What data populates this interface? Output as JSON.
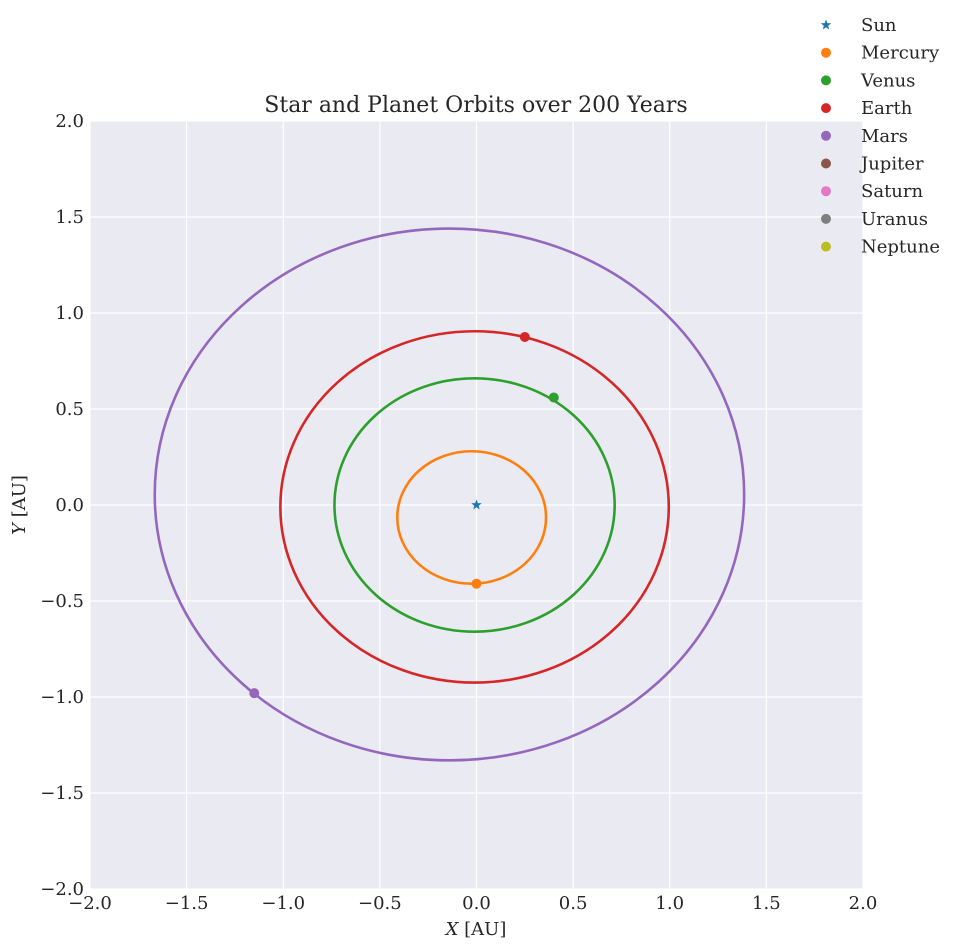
{
  "chart_data": {
    "type": "line",
    "title": "Star and Planet Orbits over 200 Years",
    "xlabel_var": "X",
    "xlabel_unit": " [AU]",
    "ylabel_var": "Y",
    "ylabel_unit": " [AU]",
    "xlim": [
      -2.0,
      2.0
    ],
    "ylim": [
      -2.0,
      2.0
    ],
    "xticks": [
      -2.0,
      -1.5,
      -1.0,
      -0.5,
      0.0,
      0.5,
      1.0,
      1.5,
      2.0
    ],
    "yticks": [
      -2.0,
      -1.5,
      -1.0,
      -0.5,
      0.0,
      0.5,
      1.0,
      1.5,
      2.0
    ],
    "xtick_labels": [
      "−2.0",
      "−1.5",
      "−1.0",
      "−0.5",
      "0.0",
      "0.5",
      "1.0",
      "1.5",
      "2.0"
    ],
    "ytick_labels": [
      "−2.0",
      "−1.5",
      "−1.0",
      "−0.5",
      "0.0",
      "0.5",
      "1.0",
      "1.5",
      "2.0"
    ],
    "grid": true,
    "legend_position": "top-right (outside axes)",
    "background_color": "#eaeaf2",
    "grid_color": "#ffffff",
    "star": {
      "name": "Sun",
      "x": 0.0,
      "y": 0.0,
      "color": "#1f77b4",
      "marker": "star"
    },
    "series": [
      {
        "name": "Mercury",
        "color": "#ff7f0e",
        "orbit": {
          "cx": -0.025,
          "cy": -0.065,
          "rx": 0.385,
          "ry": 0.345
        },
        "point": {
          "x": 0.0,
          "y": -0.41
        }
      },
      {
        "name": "Venus",
        "color": "#2ca02c",
        "orbit": {
          "cx": -0.01,
          "cy": 0.0,
          "rx": 0.725,
          "ry": 0.66
        },
        "point": {
          "x": 0.4,
          "y": 0.56
        }
      },
      {
        "name": "Earth",
        "color": "#d62728",
        "orbit": {
          "cx": -0.01,
          "cy": -0.01,
          "rx": 1.005,
          "ry": 0.915
        },
        "point": {
          "x": 0.25,
          "y": 0.875
        }
      },
      {
        "name": "Mars",
        "color": "#9467bd",
        "orbit": {
          "cx": -0.14,
          "cy": 0.055,
          "rx": 1.525,
          "ry": 1.385
        },
        "point": {
          "x": -1.15,
          "y": -0.98
        }
      },
      {
        "name": "Jupiter",
        "color": "#8c564b"
      },
      {
        "name": "Saturn",
        "color": "#e377c2"
      },
      {
        "name": "Uranus",
        "color": "#7f7f7f"
      },
      {
        "name": "Neptune",
        "color": "#bcbd22"
      }
    ]
  }
}
